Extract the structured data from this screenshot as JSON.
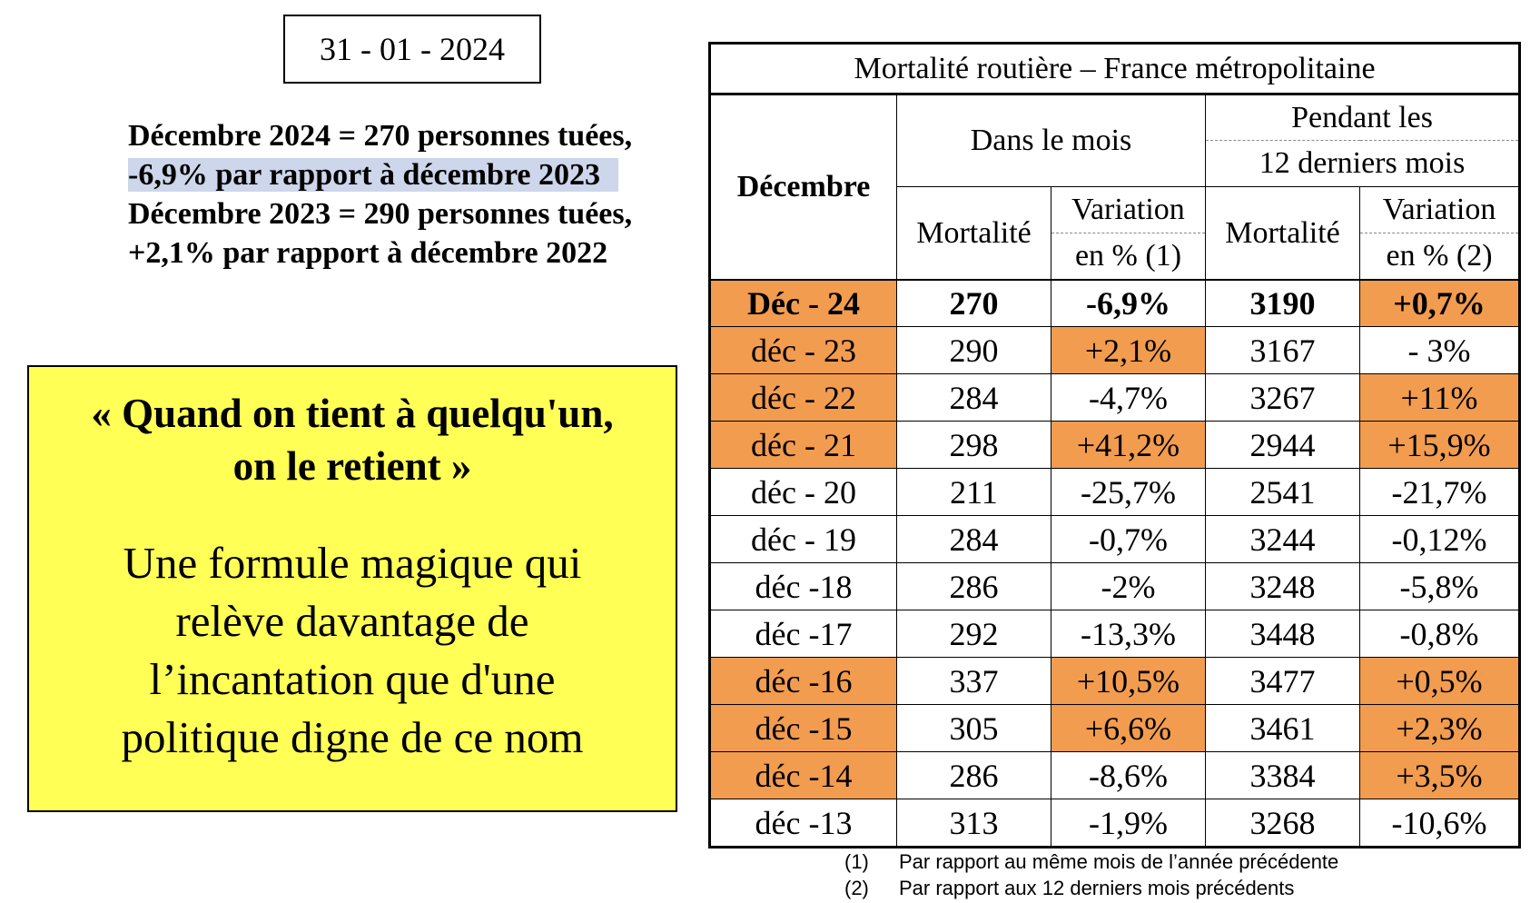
{
  "date": "31 - 01 - 2024",
  "summary": {
    "line1": "Décembre 2024 = 270 personnes tuées,",
    "line2": "-6,9% par rapport à décembre 2023",
    "line3": "Décembre 2023 = 290 personnes tuées,",
    "line4": "+2,1% par rapport à décembre 2022"
  },
  "quote_box": {
    "quote_line1": "« Quand on tient à quelqu'un,",
    "quote_line2": "on le retient »",
    "text_lines": [
      "Une formule magique qui",
      "relève davantage de",
      "l’incantation que d'une",
      "politique digne de ce nom"
    ],
    "background": "#ffff55"
  },
  "table": {
    "title": "Mortalité routière – France métropolitaine",
    "col_decembre": "Décembre",
    "group_month": "Dans le mois",
    "group_12_line1": "Pendant les",
    "group_12_line2": "12 derniers mois",
    "mortalite": "Mortalité",
    "variation": "Variation",
    "en_pct_1": "en % (1)",
    "en_pct_2": "en % (2)",
    "highlight_color": "#f29c50",
    "rows": [
      {
        "label": "Déc - 24",
        "mort_month": "270",
        "var_month": "-6,9%",
        "mort_12": "3190",
        "var_12": "+0,7%",
        "hl_label": true,
        "hl_var_month": false,
        "hl_var_12": true
      },
      {
        "label": "déc - 23",
        "mort_month": "290",
        "var_month": "+2,1%",
        "mort_12": "3167",
        "var_12": "- 3%",
        "hl_label": true,
        "hl_var_month": true,
        "hl_var_12": false
      },
      {
        "label": "déc - 22",
        "mort_month": "284",
        "var_month": "-4,7%",
        "mort_12": "3267",
        "var_12": "+11%",
        "hl_label": true,
        "hl_var_month": false,
        "hl_var_12": true
      },
      {
        "label": "déc - 21",
        "mort_month": "298",
        "var_month": "+41,2%",
        "mort_12": "2944",
        "var_12": "+15,9%",
        "hl_label": true,
        "hl_var_month": true,
        "hl_var_12": true
      },
      {
        "label": "déc - 20",
        "mort_month": "211",
        "var_month": "-25,7%",
        "mort_12": "2541",
        "var_12": "-21,7%",
        "hl_label": false,
        "hl_var_month": false,
        "hl_var_12": false
      },
      {
        "label": "déc - 19",
        "mort_month": "284",
        "var_month": "-0,7%",
        "mort_12": "3244",
        "var_12": "-0,12%",
        "hl_label": false,
        "hl_var_month": false,
        "hl_var_12": false
      },
      {
        "label": "déc -18",
        "mort_month": "286",
        "var_month": "-2%",
        "mort_12": "3248",
        "var_12": "-5,8%",
        "hl_label": false,
        "hl_var_month": false,
        "hl_var_12": false
      },
      {
        "label": "déc -17",
        "mort_month": "292",
        "var_month": "-13,3%",
        "mort_12": "3448",
        "var_12": "-0,8%",
        "hl_label": false,
        "hl_var_month": false,
        "hl_var_12": false
      },
      {
        "label": "déc -16",
        "mort_month": "337",
        "var_month": "+10,5%",
        "mort_12": "3477",
        "var_12": "+0,5%",
        "hl_label": true,
        "hl_var_month": true,
        "hl_var_12": true
      },
      {
        "label": "déc -15",
        "mort_month": "305",
        "var_month": "+6,6%",
        "mort_12": "3461",
        "var_12": "+2,3%",
        "hl_label": true,
        "hl_var_month": true,
        "hl_var_12": true
      },
      {
        "label": "déc -14",
        "mort_month": "286",
        "var_month": "-8,6%",
        "mort_12": "3384",
        "var_12": "+3,5%",
        "hl_label": true,
        "hl_var_month": false,
        "hl_var_12": true
      },
      {
        "label": "déc -13",
        "mort_month": "313",
        "var_month": "-1,9%",
        "mort_12": "3268",
        "var_12": "-10,6%",
        "hl_label": false,
        "hl_var_month": false,
        "hl_var_12": false
      }
    ]
  },
  "footnotes": [
    {
      "num": "(1)",
      "text": "Par rapport au même mois de l’année précédente"
    },
    {
      "num": "(2)",
      "text": "Par rapport aux 12 derniers mois précédents"
    }
  ]
}
